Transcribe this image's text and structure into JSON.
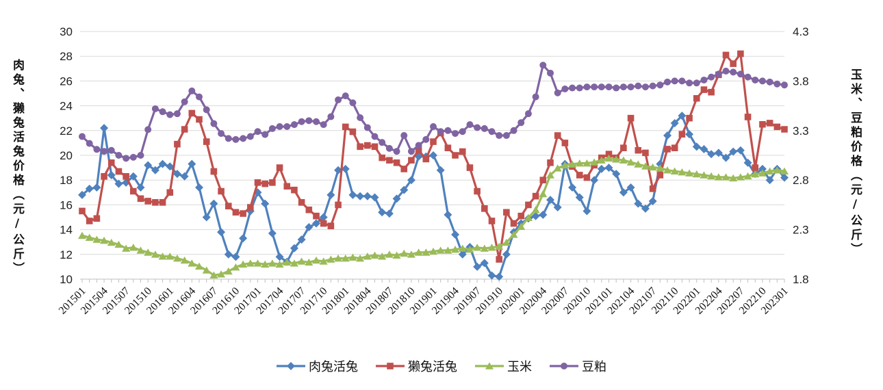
{
  "chart_data": {
    "type": "line",
    "title": "",
    "left_axis": {
      "title": "肉兔、獭兔活兔价格（元/公斤）",
      "min": 10,
      "max": 30,
      "step": 2,
      "ticks": [
        "10",
        "12",
        "14",
        "16",
        "18",
        "20",
        "22",
        "24",
        "26",
        "28",
        "30"
      ]
    },
    "right_axis": {
      "title": "玉米、豆粕价格（元/公斤）",
      "min": 1.8,
      "max": 4.3,
      "step": 0.5,
      "ticks": [
        "1.8",
        "2.3",
        "2.8",
        "3.3",
        "3.8",
        "4.3"
      ]
    },
    "grid": true,
    "legend_position": "bottom",
    "x_tick_labels": [
      "201501",
      "201504",
      "201507",
      "201510",
      "201601",
      "201604",
      "201607",
      "201610",
      "201701",
      "201704",
      "201707",
      "201710",
      "201801",
      "201804",
      "201807",
      "201810",
      "201901",
      "201904",
      "201907",
      "201910",
      "202001",
      "202004",
      "202007",
      "202010",
      "202101",
      "202104",
      "202107",
      "202110",
      "202201",
      "202204",
      "202207",
      "202210",
      "202301"
    ],
    "months_total": 97,
    "series": [
      {
        "name": "肉兔活兔",
        "color": "#4F81BD",
        "marker": "diamond",
        "axis": "left",
        "values": [
          16.8,
          17.3,
          17.4,
          22.2,
          18.4,
          17.7,
          17.8,
          18.3,
          17.4,
          19.2,
          18.8,
          19.3,
          19.1,
          18.5,
          18.3,
          19.3,
          17.4,
          15.0,
          16.1,
          13.8,
          12.0,
          11.8,
          13.3,
          15.5,
          17.0,
          16.1,
          13.7,
          11.8,
          11.4,
          12.5,
          13.2,
          14.2,
          14.5,
          15.0,
          16.8,
          18.8,
          18.9,
          16.8,
          16.7,
          16.7,
          16.6,
          15.4,
          15.3,
          16.5,
          17.2,
          18.0,
          19.9,
          19.9,
          20.0,
          18.8,
          15.2,
          13.6,
          12.0,
          12.6,
          11.0,
          11.3,
          10.3,
          10.2,
          12.0,
          13.8,
          14.5,
          14.9,
          15.1,
          15.2,
          16.4,
          15.8,
          19.3,
          17.4,
          16.6,
          15.5,
          18.0,
          18.9,
          19.0,
          18.5,
          17.0,
          17.4,
          16.1,
          15.7,
          16.3,
          19.3,
          21.6,
          22.6,
          23.2,
          21.7,
          20.7,
          20.5,
          20.1,
          20.2,
          19.8,
          20.3,
          20.4,
          19.4,
          18.5,
          18.9,
          18.0,
          18.9,
          18.2
        ]
      },
      {
        "name": "獭兔活兔",
        "color": "#C0504D",
        "marker": "square",
        "axis": "left",
        "values": [
          15.5,
          14.7,
          14.9,
          18.3,
          19.4,
          18.7,
          18.3,
          17.1,
          16.5,
          16.3,
          16.2,
          16.2,
          17.0,
          20.9,
          22.1,
          23.4,
          22.9,
          21.1,
          18.7,
          17.1,
          15.9,
          15.4,
          15.3,
          15.8,
          17.8,
          17.7,
          17.8,
          19.0,
          17.5,
          17.2,
          16.2,
          15.6,
          15.1,
          14.5,
          14.3,
          16.0,
          22.3,
          21.9,
          20.7,
          20.8,
          20.7,
          19.8,
          19.6,
          19.4,
          18.9,
          19.6,
          20.4,
          19.7,
          21.1,
          21.8,
          20.6,
          20.0,
          20.3,
          19.0,
          17.1,
          15.7,
          14.7,
          11.6,
          15.4,
          14.5,
          15.1,
          16.0,
          16.7,
          18.0,
          19.4,
          21.6,
          21.0,
          19.1,
          18.4,
          18.2,
          19.2,
          19.8,
          20.1,
          19.8,
          20.6,
          23.0,
          20.4,
          20.2,
          17.3,
          18.4,
          20.5,
          20.6,
          21.7,
          23.0,
          24.6,
          25.3,
          25.1,
          26.5,
          28.1,
          27.4,
          28.2,
          23.1,
          19.0,
          22.5,
          22.6,
          22.3,
          22.1
        ]
      },
      {
        "name": "玉米",
        "color": "#9BBB59",
        "marker": "triangle",
        "axis": "right",
        "values": [
          2.24,
          2.22,
          2.2,
          2.19,
          2.17,
          2.15,
          2.11,
          2.12,
          2.09,
          2.07,
          2.05,
          2.03,
          2.03,
          2.01,
          1.99,
          1.96,
          1.93,
          1.89,
          1.84,
          1.85,
          1.88,
          1.92,
          1.95,
          1.96,
          1.96,
          1.95,
          1.96,
          1.95,
          1.97,
          1.96,
          1.98,
          1.97,
          1.99,
          1.98,
          2.0,
          2.01,
          2.01,
          2.02,
          2.01,
          2.03,
          2.04,
          2.03,
          2.05,
          2.04,
          2.06,
          2.05,
          2.07,
          2.07,
          2.08,
          2.09,
          2.09,
          2.1,
          2.11,
          2.1,
          2.12,
          2.11,
          2.12,
          2.13,
          2.17,
          2.25,
          2.33,
          2.42,
          2.5,
          2.66,
          2.85,
          2.92,
          2.95,
          2.96,
          2.97,
          2.97,
          2.98,
          3.0,
          3.02,
          3.01,
          3.0,
          2.98,
          2.96,
          2.94,
          2.93,
          2.92,
          2.9,
          2.89,
          2.88,
          2.87,
          2.86,
          2.85,
          2.84,
          2.83,
          2.83,
          2.82,
          2.83,
          2.84,
          2.86,
          2.87,
          2.89,
          2.9,
          2.89
        ]
      },
      {
        "name": "豆粕",
        "color": "#8064A2",
        "marker": "circle",
        "axis": "right",
        "values": [
          3.24,
          3.17,
          3.11,
          3.09,
          3.1,
          3.05,
          3.02,
          3.03,
          3.05,
          3.31,
          3.52,
          3.49,
          3.46,
          3.47,
          3.59,
          3.7,
          3.64,
          3.51,
          3.37,
          3.27,
          3.22,
          3.21,
          3.22,
          3.24,
          3.29,
          3.26,
          3.32,
          3.34,
          3.34,
          3.36,
          3.39,
          3.4,
          3.39,
          3.36,
          3.44,
          3.61,
          3.65,
          3.58,
          3.43,
          3.33,
          3.24,
          3.18,
          3.12,
          3.09,
          3.25,
          3.09,
          3.15,
          3.21,
          3.34,
          3.29,
          3.3,
          3.27,
          3.29,
          3.36,
          3.33,
          3.32,
          3.29,
          3.25,
          3.25,
          3.3,
          3.38,
          3.47,
          3.64,
          3.96,
          3.88,
          3.68,
          3.72,
          3.73,
          3.73,
          3.74,
          3.74,
          3.74,
          3.74,
          3.73,
          3.74,
          3.74,
          3.75,
          3.74,
          3.75,
          3.76,
          3.79,
          3.8,
          3.8,
          3.78,
          3.78,
          3.81,
          3.84,
          3.87,
          3.9,
          3.89,
          3.87,
          3.84,
          3.81,
          3.8,
          3.79,
          3.77,
          3.76
        ]
      }
    ]
  }
}
